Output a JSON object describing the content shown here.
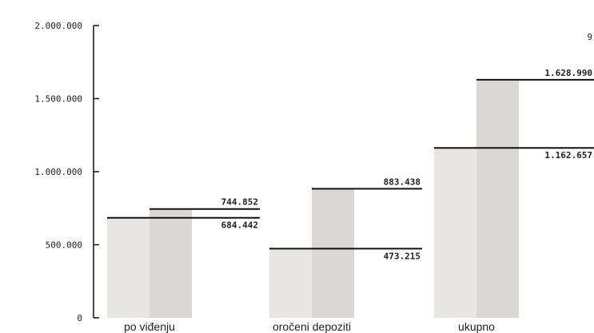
{
  "chart_data": {
    "type": "bar",
    "categories": [
      "po viđenju",
      "oročeni depoziti",
      "ukupno"
    ],
    "series": [
      {
        "values": [
          684.442,
          473.215,
          1162.657
        ],
        "color": "#e8e6e4"
      },
      {
        "values": [
          744.852,
          883.438,
          1628.99
        ],
        "color": "#dad8d6"
      }
    ],
    "value_labels": [
      [
        "684.442",
        "473.215",
        "1.162.657"
      ],
      [
        "744.852",
        "883.438",
        "1.628.990"
      ]
    ],
    "ylim": [
      0,
      2000
    ],
    "yticks": [
      {
        "value": 0,
        "label": "0"
      },
      {
        "value": 500,
        "label": "500.000"
      },
      {
        "value": 1000,
        "label": "1.000.000"
      },
      {
        "value": 1500,
        "label": "1.500.000"
      },
      {
        "value": 2000,
        "label": "2.000.000"
      }
    ],
    "edge_label": "9",
    "line_color": "#111111",
    "title": "",
    "xlabel": "",
    "ylabel": ""
  }
}
